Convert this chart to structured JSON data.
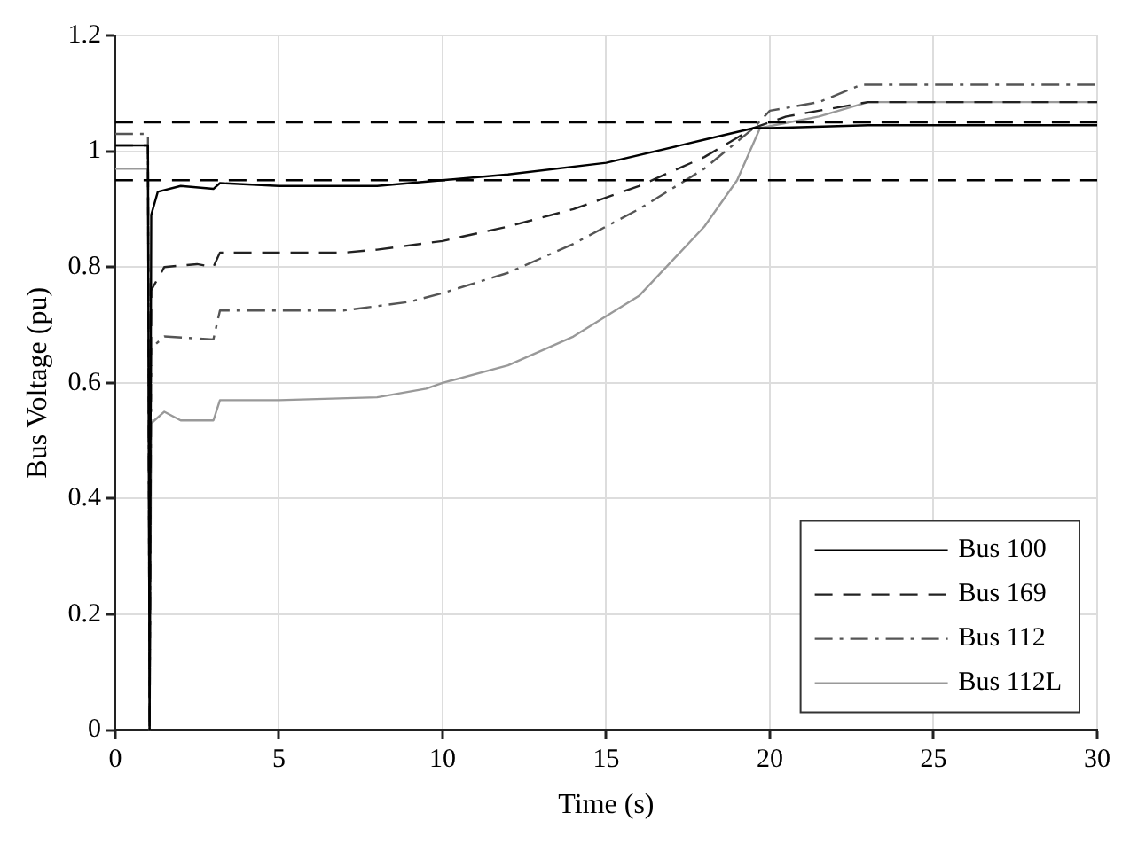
{
  "chart_data": {
    "type": "line",
    "xlabel": "Time (s)",
    "ylabel": "Bus Voltage (pu)",
    "xlim": [
      0,
      30
    ],
    "xticks": [
      0,
      5,
      10,
      15,
      20,
      25,
      30
    ],
    "ylim": [
      0,
      1.2
    ],
    "yticks": [
      0,
      0.2,
      0.4,
      0.6,
      0.8,
      1,
      1.2
    ],
    "grid": true,
    "legend": "bottom right",
    "marker": "none",
    "series": [
      {
        "name": "Bus 100",
        "color": "#000000",
        "line_style": "solid",
        "x": [
          0,
          1,
          1.05,
          1.1,
          1.3,
          2,
          3,
          3.2,
          5,
          8,
          10,
          12,
          15,
          18,
          19.5,
          20,
          23,
          30
        ],
        "values": [
          1.01,
          1.01,
          0,
          0.89,
          0.93,
          0.94,
          0.935,
          0.945,
          0.94,
          0.94,
          0.95,
          0.96,
          0.98,
          1.02,
          1.04,
          1.04,
          1.045,
          1.045
        ]
      },
      {
        "name": "Bus 169",
        "color": "#222222",
        "line_style": "dashed",
        "x": [
          0,
          1,
          1.05,
          1.1,
          1.5,
          2.5,
          3,
          3.2,
          5,
          7,
          8,
          10,
          12,
          14,
          16,
          18,
          19.5,
          20.5,
          23,
          30
        ],
        "values": [
          1.01,
          1.01,
          0,
          0.76,
          0.8,
          0.805,
          0.8,
          0.825,
          0.825,
          0.825,
          0.83,
          0.845,
          0.87,
          0.9,
          0.94,
          0.99,
          1.04,
          1.06,
          1.085,
          1.085
        ]
      },
      {
        "name": "Bus 112",
        "color": "#555555",
        "line_style": "dashdot",
        "x": [
          0,
          1,
          1.05,
          1.1,
          1.5,
          3,
          3.2,
          5,
          7,
          9,
          10,
          12,
          14,
          16,
          18,
          19.5,
          20,
          21.5,
          22.8,
          30
        ],
        "values": [
          1.03,
          1.03,
          0,
          0.66,
          0.68,
          0.675,
          0.725,
          0.725,
          0.725,
          0.74,
          0.755,
          0.79,
          0.84,
          0.9,
          0.97,
          1.04,
          1.07,
          1.085,
          1.115,
          1.115
        ]
      },
      {
        "name": "Bus 112L",
        "color": "#999999",
        "line_style": "solid",
        "x": [
          0,
          1,
          1.05,
          1.1,
          1.5,
          2,
          3,
          3.2,
          5,
          8,
          9.5,
          10,
          12,
          14,
          16,
          18,
          19,
          19.7,
          21.5,
          23,
          30
        ],
        "values": [
          0.97,
          0.97,
          0,
          0.53,
          0.55,
          0.535,
          0.535,
          0.57,
          0.57,
          0.575,
          0.59,
          0.6,
          0.63,
          0.68,
          0.75,
          0.87,
          0.95,
          1.04,
          1.06,
          1.085,
          1.085
        ]
      }
    ],
    "ref_lines": [
      {
        "axis": "y",
        "value": 1.05,
        "color": "#000000",
        "line_style": "dashed"
      },
      {
        "axis": "y",
        "value": 0.95,
        "color": "#000000",
        "line_style": "dashed"
      }
    ]
  }
}
